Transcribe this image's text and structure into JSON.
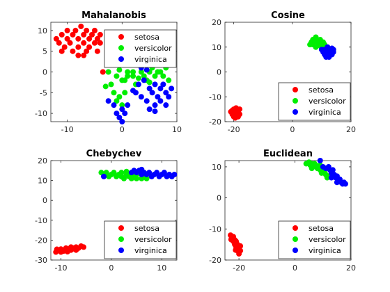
{
  "chart_data": [
    {
      "type": "scatter",
      "title": "Mahalanobis",
      "xlim": [
        -13,
        10
      ],
      "ylim": [
        -12,
        12
      ],
      "xticks": [
        -10,
        0,
        10
      ],
      "yticks": [
        -10,
        -5,
        0,
        5,
        10
      ],
      "xtick_labels": [
        "-10",
        "0",
        "10"
      ],
      "ytick_labels": [
        "-10",
        "-5",
        "0",
        "5",
        "10"
      ],
      "legend_position": "upper-right",
      "series": [
        {
          "name": "setosa",
          "color": "#ff0000",
          "points": [
            [
              -12,
              8
            ],
            [
              -11.5,
              7
            ],
            [
              -11,
              9
            ],
            [
              -10.5,
              6
            ],
            [
              -10,
              8
            ],
            [
              -10,
              10
            ],
            [
              -9.5,
              7
            ],
            [
              -9,
              9
            ],
            [
              -9,
              5
            ],
            [
              -8.5,
              10
            ],
            [
              -8,
              8
            ],
            [
              -8,
              6
            ],
            [
              -7.5,
              11
            ],
            [
              -7,
              9
            ],
            [
              -7,
              7
            ],
            [
              -6.5,
              10
            ],
            [
              -6.5,
              5
            ],
            [
              -6,
              8
            ],
            [
              -6,
              6
            ],
            [
              -5.5,
              9
            ],
            [
              -5,
              7
            ],
            [
              -5,
              10
            ],
            [
              -4.5,
              8
            ],
            [
              -4.5,
              5
            ],
            [
              -4,
              9
            ],
            [
              -4,
              7
            ],
            [
              -8,
              4
            ],
            [
              -7,
              4
            ],
            [
              -11,
              5
            ],
            [
              -3.5,
              0
            ]
          ]
        },
        {
          "name": "versicolor",
          "color": "#00ee00",
          "points": [
            [
              -2.5,
              0
            ],
            [
              -3,
              -3.5
            ],
            [
              -2,
              -3
            ],
            [
              -1.5,
              -5
            ],
            [
              -1,
              -1
            ],
            [
              -1,
              -7
            ],
            [
              -0.5,
              -6
            ],
            [
              0,
              -8
            ],
            [
              0,
              -2
            ],
            [
              0.5,
              -5
            ],
            [
              1,
              0
            ],
            [
              1,
              -1
            ],
            [
              2,
              0
            ],
            [
              2,
              -1
            ],
            [
              2.5,
              -3
            ],
            [
              3,
              -1.5
            ],
            [
              3.5,
              0
            ],
            [
              4,
              -1
            ],
            [
              4.5,
              -2
            ],
            [
              5,
              0
            ],
            [
              5,
              -2.5
            ],
            [
              5.5,
              1
            ],
            [
              6,
              -1
            ],
            [
              6.5,
              0
            ],
            [
              7,
              0
            ],
            [
              7.5,
              -1
            ],
            [
              8,
              1
            ],
            [
              8.5,
              -2
            ],
            [
              -0.5,
              0.5
            ],
            [
              0.5,
              -2
            ]
          ]
        },
        {
          "name": "virginica",
          "color": "#0000ff",
          "points": [
            [
              -2.5,
              -7
            ],
            [
              -1.5,
              -8
            ],
            [
              -1,
              -10
            ],
            [
              -0.5,
              -11
            ],
            [
              0,
              -12
            ],
            [
              0,
              -9
            ],
            [
              0.5,
              -10
            ],
            [
              1,
              -8
            ],
            [
              2,
              -4.5
            ],
            [
              2.5,
              -5
            ],
            [
              3,
              -3
            ],
            [
              3.5,
              -6
            ],
            [
              4,
              -2
            ],
            [
              4.5,
              -7
            ],
            [
              5,
              -4
            ],
            [
              5,
              -9
            ],
            [
              5.5,
              -5
            ],
            [
              6,
              -3
            ],
            [
              6,
              -8
            ],
            [
              6.5,
              -6
            ],
            [
              7,
              -4
            ],
            [
              7,
              -7
            ],
            [
              7.5,
              -3
            ],
            [
              8,
              -5
            ],
            [
              8,
              -8
            ],
            [
              8.5,
              -6
            ],
            [
              9,
              -4
            ],
            [
              3.5,
              1
            ],
            [
              4.5,
              0.5
            ],
            [
              6,
              -9.5
            ]
          ]
        }
      ]
    },
    {
      "type": "scatter",
      "title": "Cosine",
      "xlim": [
        -23,
        20
      ],
      "ylim": [
        -20,
        20
      ],
      "xticks": [
        -20,
        0,
        20
      ],
      "yticks": [
        -20,
        -10,
        0,
        10,
        20
      ],
      "xtick_labels": [
        "-20",
        "0",
        "20"
      ],
      "ytick_labels": [
        "-20",
        "-10",
        "0",
        "10",
        "20"
      ],
      "legend_position": "lower-right",
      "series": [
        {
          "name": "setosa",
          "color": "#ff0000",
          "points": [
            [
              -21,
              -16
            ],
            [
              -20.5,
              -17
            ],
            [
              -20,
              -15
            ],
            [
              -20,
              -18
            ],
            [
              -19.5,
              -16
            ],
            [
              -19,
              -17
            ],
            [
              -19,
              -15
            ],
            [
              -18.5,
              -18
            ],
            [
              -18.5,
              -16
            ],
            [
              -18,
              -17
            ],
            [
              -18,
              -15
            ],
            [
              -20.5,
              -15.5
            ],
            [
              -19.5,
              -18.5
            ],
            [
              -18.8,
              -16.2
            ],
            [
              -20.2,
              -16.8
            ],
            [
              -19.2,
              -14.5
            ]
          ]
        },
        {
          "name": "versicolor",
          "color": "#00ee00",
          "points": [
            [
              6,
              11
            ],
            [
              6.5,
              12
            ],
            [
              7,
              13
            ],
            [
              7,
              11
            ],
            [
              7.5,
              12
            ],
            [
              8,
              14
            ],
            [
              8,
              10
            ],
            [
              8.5,
              13
            ],
            [
              9,
              11
            ],
            [
              9,
              12
            ],
            [
              9.5,
              13
            ],
            [
              10,
              11
            ],
            [
              10,
              10
            ],
            [
              10.5,
              12
            ],
            [
              11,
              11
            ],
            [
              11,
              9
            ],
            [
              8,
              12.5
            ],
            [
              9.5,
              10.5
            ]
          ]
        },
        {
          "name": "virginica",
          "color": "#0000ff",
          "points": [
            [
              10,
              9
            ],
            [
              10.5,
              8
            ],
            [
              11,
              7
            ],
            [
              11,
              9
            ],
            [
              11.5,
              6
            ],
            [
              12,
              8
            ],
            [
              12,
              10
            ],
            [
              12.5,
              7
            ],
            [
              13,
              9
            ],
            [
              13,
              8
            ],
            [
              13.5,
              7
            ],
            [
              14,
              9
            ],
            [
              14,
              8
            ],
            [
              12.5,
              6
            ],
            [
              11.5,
              8.5
            ],
            [
              13.5,
              9.5
            ]
          ]
        }
      ]
    },
    {
      "type": "scatter",
      "title": "Chebychev",
      "xlim": [
        -12,
        13
      ],
      "ylim": [
        -30,
        20
      ],
      "xticks": [
        -10,
        0,
        10
      ],
      "yticks": [
        -30,
        -20,
        -10,
        0,
        10,
        20
      ],
      "xtick_labels": [
        "-10",
        "0",
        "10"
      ],
      "ytick_labels": [
        "-30",
        "-20",
        "-10",
        "0",
        "10",
        "20"
      ],
      "legend_position": "lower-right",
      "series": [
        {
          "name": "setosa",
          "color": "#ff0000",
          "points": [
            [
              -11,
              -26
            ],
            [
              -10.5,
              -25
            ],
            [
              -10,
              -26
            ],
            [
              -10,
              -24.5
            ],
            [
              -9.5,
              -25.5
            ],
            [
              -9,
              -25
            ],
            [
              -9,
              -24
            ],
            [
              -8.5,
              -24.5
            ],
            [
              -8,
              -25
            ],
            [
              -8,
              -23.5
            ],
            [
              -7.5,
              -24
            ],
            [
              -7,
              -23.5
            ],
            [
              -7,
              -25
            ],
            [
              -6.5,
              -24
            ],
            [
              -6,
              -23
            ],
            [
              -5.5,
              -23.5
            ],
            [
              -10.8,
              -24.6
            ],
            [
              -8.7,
              -25.8
            ]
          ]
        },
        {
          "name": "versicolor",
          "color": "#00ee00",
          "points": [
            [
              -2,
              14
            ],
            [
              -1.5,
              13
            ],
            [
              -1,
              14
            ],
            [
              -0.5,
              12
            ],
            [
              0,
              13
            ],
            [
              0.5,
              14
            ],
            [
              1,
              12
            ],
            [
              1.5,
              13
            ],
            [
              2,
              14
            ],
            [
              2,
              12
            ],
            [
              2.5,
              11
            ],
            [
              3,
              13
            ],
            [
              3.5,
              12
            ],
            [
              4,
              11
            ],
            [
              4.5,
              12
            ],
            [
              5,
              13
            ],
            [
              5,
              11
            ],
            [
              6,
              11
            ],
            [
              6.5,
              12
            ],
            [
              7,
              11
            ],
            [
              3,
              14.5
            ]
          ]
        },
        {
          "name": "virginica",
          "color": "#0000ff",
          "points": [
            [
              -1.5,
              12
            ],
            [
              4,
              14
            ],
            [
              4.5,
              15
            ],
            [
              5,
              14
            ],
            [
              5.5,
              15
            ],
            [
              6,
              13
            ],
            [
              6.5,
              14
            ],
            [
              7,
              13
            ],
            [
              7.5,
              14
            ],
            [
              8,
              12
            ],
            [
              8.5,
              13
            ],
            [
              9,
              14
            ],
            [
              9.5,
              12
            ],
            [
              10,
              13
            ],
            [
              10.5,
              14
            ],
            [
              11,
              12
            ],
            [
              11.5,
              13
            ],
            [
              12,
              12
            ],
            [
              12.5,
              13
            ],
            [
              6,
              15.5
            ]
          ]
        }
      ]
    },
    {
      "type": "scatter",
      "title": "Euclidean",
      "xlim": [
        -25,
        20
      ],
      "ylim": [
        -20,
        12
      ],
      "xticks": [
        -20,
        0,
        20
      ],
      "yticks": [
        -20,
        -10,
        0,
        10
      ],
      "xtick_labels": [
        "-20",
        "0",
        "20"
      ],
      "ytick_labels": [
        "-20",
        "-10",
        "0",
        "10"
      ],
      "legend_position": "lower-right",
      "series": [
        {
          "name": "setosa",
          "color": "#ff0000",
          "points": [
            [
              -23,
              -12
            ],
            [
              -22.5,
              -13
            ],
            [
              -22,
              -14
            ],
            [
              -22,
              -12.5
            ],
            [
              -21.5,
              -15
            ],
            [
              -21.5,
              -13.5
            ],
            [
              -21,
              -14
            ],
            [
              -21,
              -16
            ],
            [
              -20.5,
              -15
            ],
            [
              -20.5,
              -17
            ],
            [
              -20,
              -16
            ],
            [
              -20,
              -18
            ],
            [
              -19.5,
              -17
            ],
            [
              -19.5,
              -15.5
            ],
            [
              -22.8,
              -13.4
            ],
            [
              -21.2,
              -16.8
            ]
          ]
        },
        {
          "name": "versicolor",
          "color": "#00ee00",
          "points": [
            [
              4,
              11
            ],
            [
              5,
              11.5
            ],
            [
              5.5,
              10.5
            ],
            [
              6,
              11
            ],
            [
              6.5,
              10
            ],
            [
              7,
              11
            ],
            [
              7.5,
              10.5
            ],
            [
              8,
              9.5
            ],
            [
              8.5,
              10
            ],
            [
              9,
              9
            ],
            [
              9.5,
              8
            ],
            [
              10,
              9
            ],
            [
              10.5,
              8.5
            ],
            [
              11,
              7.5
            ],
            [
              11.5,
              6.5
            ],
            [
              12,
              7
            ],
            [
              6,
              9.5
            ],
            [
              9,
              10.5
            ]
          ]
        },
        {
          "name": "virginica",
          "color": "#0000ff",
          "points": [
            [
              9,
              12
            ],
            [
              10,
              10
            ],
            [
              11,
              9.5
            ],
            [
              12,
              10
            ],
            [
              12.5,
              9
            ],
            [
              13,
              8
            ],
            [
              13.5,
              9
            ],
            [
              14,
              7.5
            ],
            [
              14.5,
              6.5
            ],
            [
              15,
              7
            ],
            [
              15.5,
              5.5
            ],
            [
              16,
              6
            ],
            [
              16.5,
              5
            ],
            [
              17,
              4.5
            ],
            [
              17.5,
              5
            ],
            [
              18,
              4.5
            ],
            [
              15,
              5
            ],
            [
              13,
              6.5
            ]
          ]
        }
      ]
    }
  ]
}
